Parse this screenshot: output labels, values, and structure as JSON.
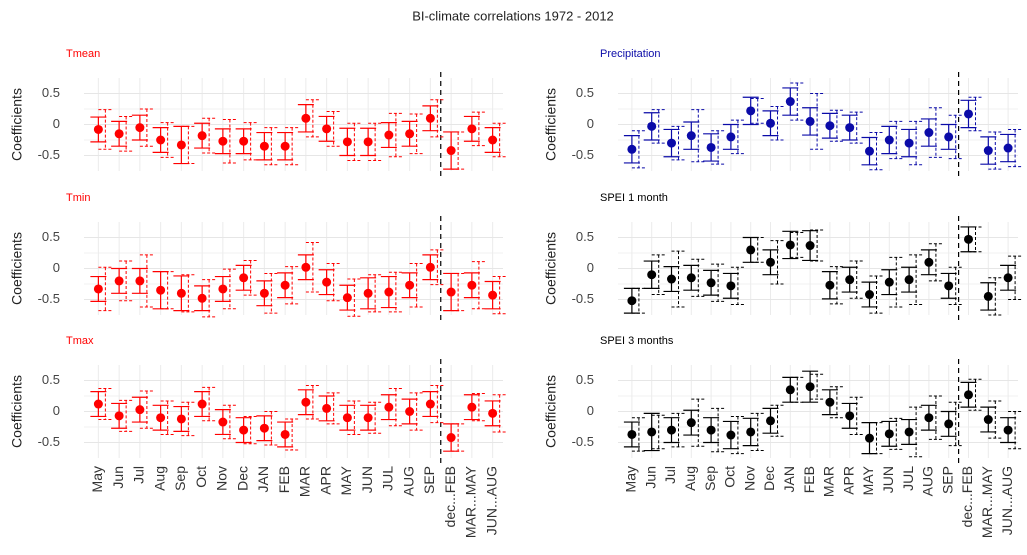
{
  "title": "BI-climate correlations 1972 - 2012",
  "chart_data": [
    {
      "type": "errorbar",
      "title": "Tmean",
      "color": "#ff0000",
      "ylabel": "Coefficients",
      "ylim": [
        -0.75,
        0.75
      ],
      "yticks": [
        -0.5,
        0.0,
        0.5
      ],
      "grid": true,
      "values": [
        -0.08,
        -0.15,
        -0.05,
        -0.25,
        -0.33,
        -0.18,
        -0.27,
        -0.27,
        -0.35,
        -0.35,
        0.1,
        -0.07,
        -0.28,
        -0.28,
        -0.17,
        -0.15,
        0.1,
        -0.42,
        -0.07,
        -0.25
      ],
      "errors": [
        0.2,
        0.2,
        0.2,
        0.2,
        0.3,
        0.2,
        0.2,
        0.2,
        0.22,
        0.22,
        0.22,
        0.2,
        0.22,
        0.22,
        0.2,
        0.2,
        0.2,
        0.3,
        0.2,
        0.2
      ],
      "dashed_errors": [
        0.32,
        0.28,
        0.3,
        0.28,
        0.3,
        0.28,
        0.35,
        0.3,
        0.3,
        0.3,
        0.3,
        0.28,
        0.3,
        0.3,
        0.35,
        0.32,
        0.3,
        0.3,
        0.27,
        0.27
      ]
    },
    {
      "type": "errorbar",
      "title": "Tmin",
      "color": "#ff0000",
      "ylabel": "Coefficients",
      "ylim": [
        -0.75,
        0.75
      ],
      "yticks": [
        -0.5,
        0.0,
        0.5
      ],
      "grid": true,
      "values": [
        -0.33,
        -0.2,
        -0.2,
        -0.35,
        -0.4,
        -0.48,
        -0.33,
        -0.15,
        -0.4,
        -0.27,
        0.02,
        -0.22,
        -0.47,
        -0.4,
        -0.38,
        -0.27,
        0.02,
        -0.38,
        -0.27,
        -0.43
      ],
      "errors": [
        0.2,
        0.2,
        0.2,
        0.3,
        0.28,
        0.2,
        0.2,
        0.2,
        0.2,
        0.2,
        0.2,
        0.2,
        0.2,
        0.25,
        0.25,
        0.2,
        0.2,
        0.3,
        0.2,
        0.22
      ],
      "dashed_errors": [
        0.35,
        0.32,
        0.42,
        0.3,
        0.3,
        0.3,
        0.32,
        0.28,
        0.32,
        0.3,
        0.4,
        0.3,
        0.3,
        0.3,
        0.32,
        0.35,
        0.28,
        0.3,
        0.38,
        0.3
      ]
    },
    {
      "type": "errorbar",
      "title": "Tmax",
      "color": "#ff0000",
      "ylabel": "Coefficients",
      "ylim": [
        -0.75,
        0.75
      ],
      "yticks": [
        -0.5,
        0.0,
        0.5
      ],
      "grid": true,
      "categories": [
        "May",
        "Jun",
        "Jul",
        "Aug",
        "Sep",
        "Oct",
        "Nov",
        "Dec",
        "JAN",
        "FEB",
        "MAR",
        "APR",
        "MAY",
        "JUN",
        "JUL",
        "AUG",
        "SEP",
        "dec...FEB",
        "MAR...MAY",
        "JUN...AUG"
      ],
      "separator_after": "SEP",
      "values": [
        0.12,
        -0.07,
        0.03,
        -0.1,
        -0.12,
        0.12,
        -0.17,
        -0.3,
        -0.27,
        -0.37,
        0.15,
        0.05,
        -0.1,
        -0.1,
        0.07,
        0.0,
        0.12,
        -0.42,
        0.07,
        -0.03
      ],
      "errors": [
        0.2,
        0.2,
        0.2,
        0.2,
        0.2,
        0.2,
        0.2,
        0.2,
        0.2,
        0.2,
        0.2,
        0.2,
        0.2,
        0.2,
        0.2,
        0.2,
        0.2,
        0.22,
        0.2,
        0.2
      ],
      "dashed_errors": [
        0.25,
        0.25,
        0.3,
        0.27,
        0.27,
        0.27,
        0.27,
        0.22,
        0.27,
        0.25,
        0.27,
        0.25,
        0.27,
        0.25,
        0.3,
        0.3,
        0.3,
        0.22,
        0.22,
        0.3
      ]
    },
    {
      "type": "errorbar",
      "title": "Precipitation",
      "color": "#0b0ba8",
      "ylabel": "Coefficients",
      "ylim": [
        -0.75,
        0.75
      ],
      "yticks": [
        -0.5,
        0.0,
        0.5
      ],
      "grid": true,
      "values": [
        -0.4,
        -0.03,
        -0.3,
        -0.18,
        -0.37,
        -0.2,
        0.22,
        0.02,
        0.37,
        0.05,
        -0.02,
        -0.05,
        -0.43,
        -0.25,
        -0.3,
        -0.13,
        -0.2,
        0.17,
        -0.42,
        -0.38
      ],
      "errors": [
        0.22,
        0.22,
        0.22,
        0.22,
        0.22,
        0.2,
        0.22,
        0.2,
        0.22,
        0.22,
        0.2,
        0.2,
        0.22,
        0.22,
        0.22,
        0.22,
        0.2,
        0.22,
        0.22,
        0.22
      ],
      "dashed_errors": [
        0.3,
        0.27,
        0.27,
        0.42,
        0.27,
        0.27,
        0.2,
        0.27,
        0.3,
        0.45,
        0.25,
        0.25,
        0.3,
        0.3,
        0.35,
        0.4,
        0.35,
        0.27,
        0.3,
        0.3
      ]
    },
    {
      "type": "errorbar",
      "title": "SPEI 1 month",
      "color": "#000000",
      "ylabel": "Coefficients",
      "ylim": [
        -0.75,
        0.75
      ],
      "yticks": [
        -0.5,
        0.0,
        0.5
      ],
      "grid": true,
      "values": [
        -0.52,
        -0.1,
        -0.17,
        -0.15,
        -0.23,
        -0.28,
        0.3,
        0.1,
        0.38,
        0.37,
        -0.27,
        -0.18,
        -0.42,
        -0.22,
        -0.18,
        0.1,
        -0.28,
        0.47,
        -0.45,
        -0.15
      ],
      "errors": [
        0.2,
        0.22,
        0.2,
        0.2,
        0.2,
        0.2,
        0.2,
        0.2,
        0.22,
        0.24,
        0.22,
        0.2,
        0.2,
        0.2,
        0.2,
        0.2,
        0.2,
        0.2,
        0.22,
        0.2
      ],
      "dashed_errors": [
        0.2,
        0.32,
        0.45,
        0.3,
        0.3,
        0.3,
        0.2,
        0.35,
        0.2,
        0.25,
        0.3,
        0.3,
        0.3,
        0.4,
        0.4,
        0.3,
        0.3,
        0.2,
        0.3,
        0.35
      ]
    },
    {
      "type": "errorbar",
      "title": "SPEI 3 months",
      "color": "#000000",
      "ylabel": "Coefficients",
      "ylim": [
        -0.75,
        0.75
      ],
      "yticks": [
        -0.5,
        0.0,
        0.5
      ],
      "grid": true,
      "categories": [
        "May",
        "Jun",
        "Jul",
        "Aug",
        "Sep",
        "Oct",
        "Nov",
        "Dec",
        "JAN",
        "FEB",
        "MAR",
        "APR",
        "MAY",
        "JUN",
        "JUL",
        "AUG",
        "SEP",
        "dec...FEB",
        "MAR...MAY",
        "JUN...AUG"
      ],
      "separator_after": "SEP",
      "values": [
        -0.37,
        -0.33,
        -0.3,
        -0.18,
        -0.3,
        -0.38,
        -0.33,
        -0.15,
        0.35,
        0.4,
        0.15,
        -0.07,
        -0.43,
        -0.36,
        -0.33,
        -0.1,
        -0.2,
        0.27,
        -0.13,
        -0.3
      ],
      "errors": [
        0.2,
        0.3,
        0.2,
        0.2,
        0.2,
        0.22,
        0.22,
        0.2,
        0.2,
        0.25,
        0.2,
        0.2,
        0.25,
        0.2,
        0.2,
        0.2,
        0.2,
        0.2,
        0.2,
        0.2
      ],
      "dashed_errors": [
        0.27,
        0.27,
        0.27,
        0.38,
        0.35,
        0.3,
        0.3,
        0.25,
        0.2,
        0.2,
        0.25,
        0.3,
        0.25,
        0.25,
        0.4,
        0.35,
        0.35,
        0.25,
        0.3,
        0.3
      ]
    }
  ]
}
